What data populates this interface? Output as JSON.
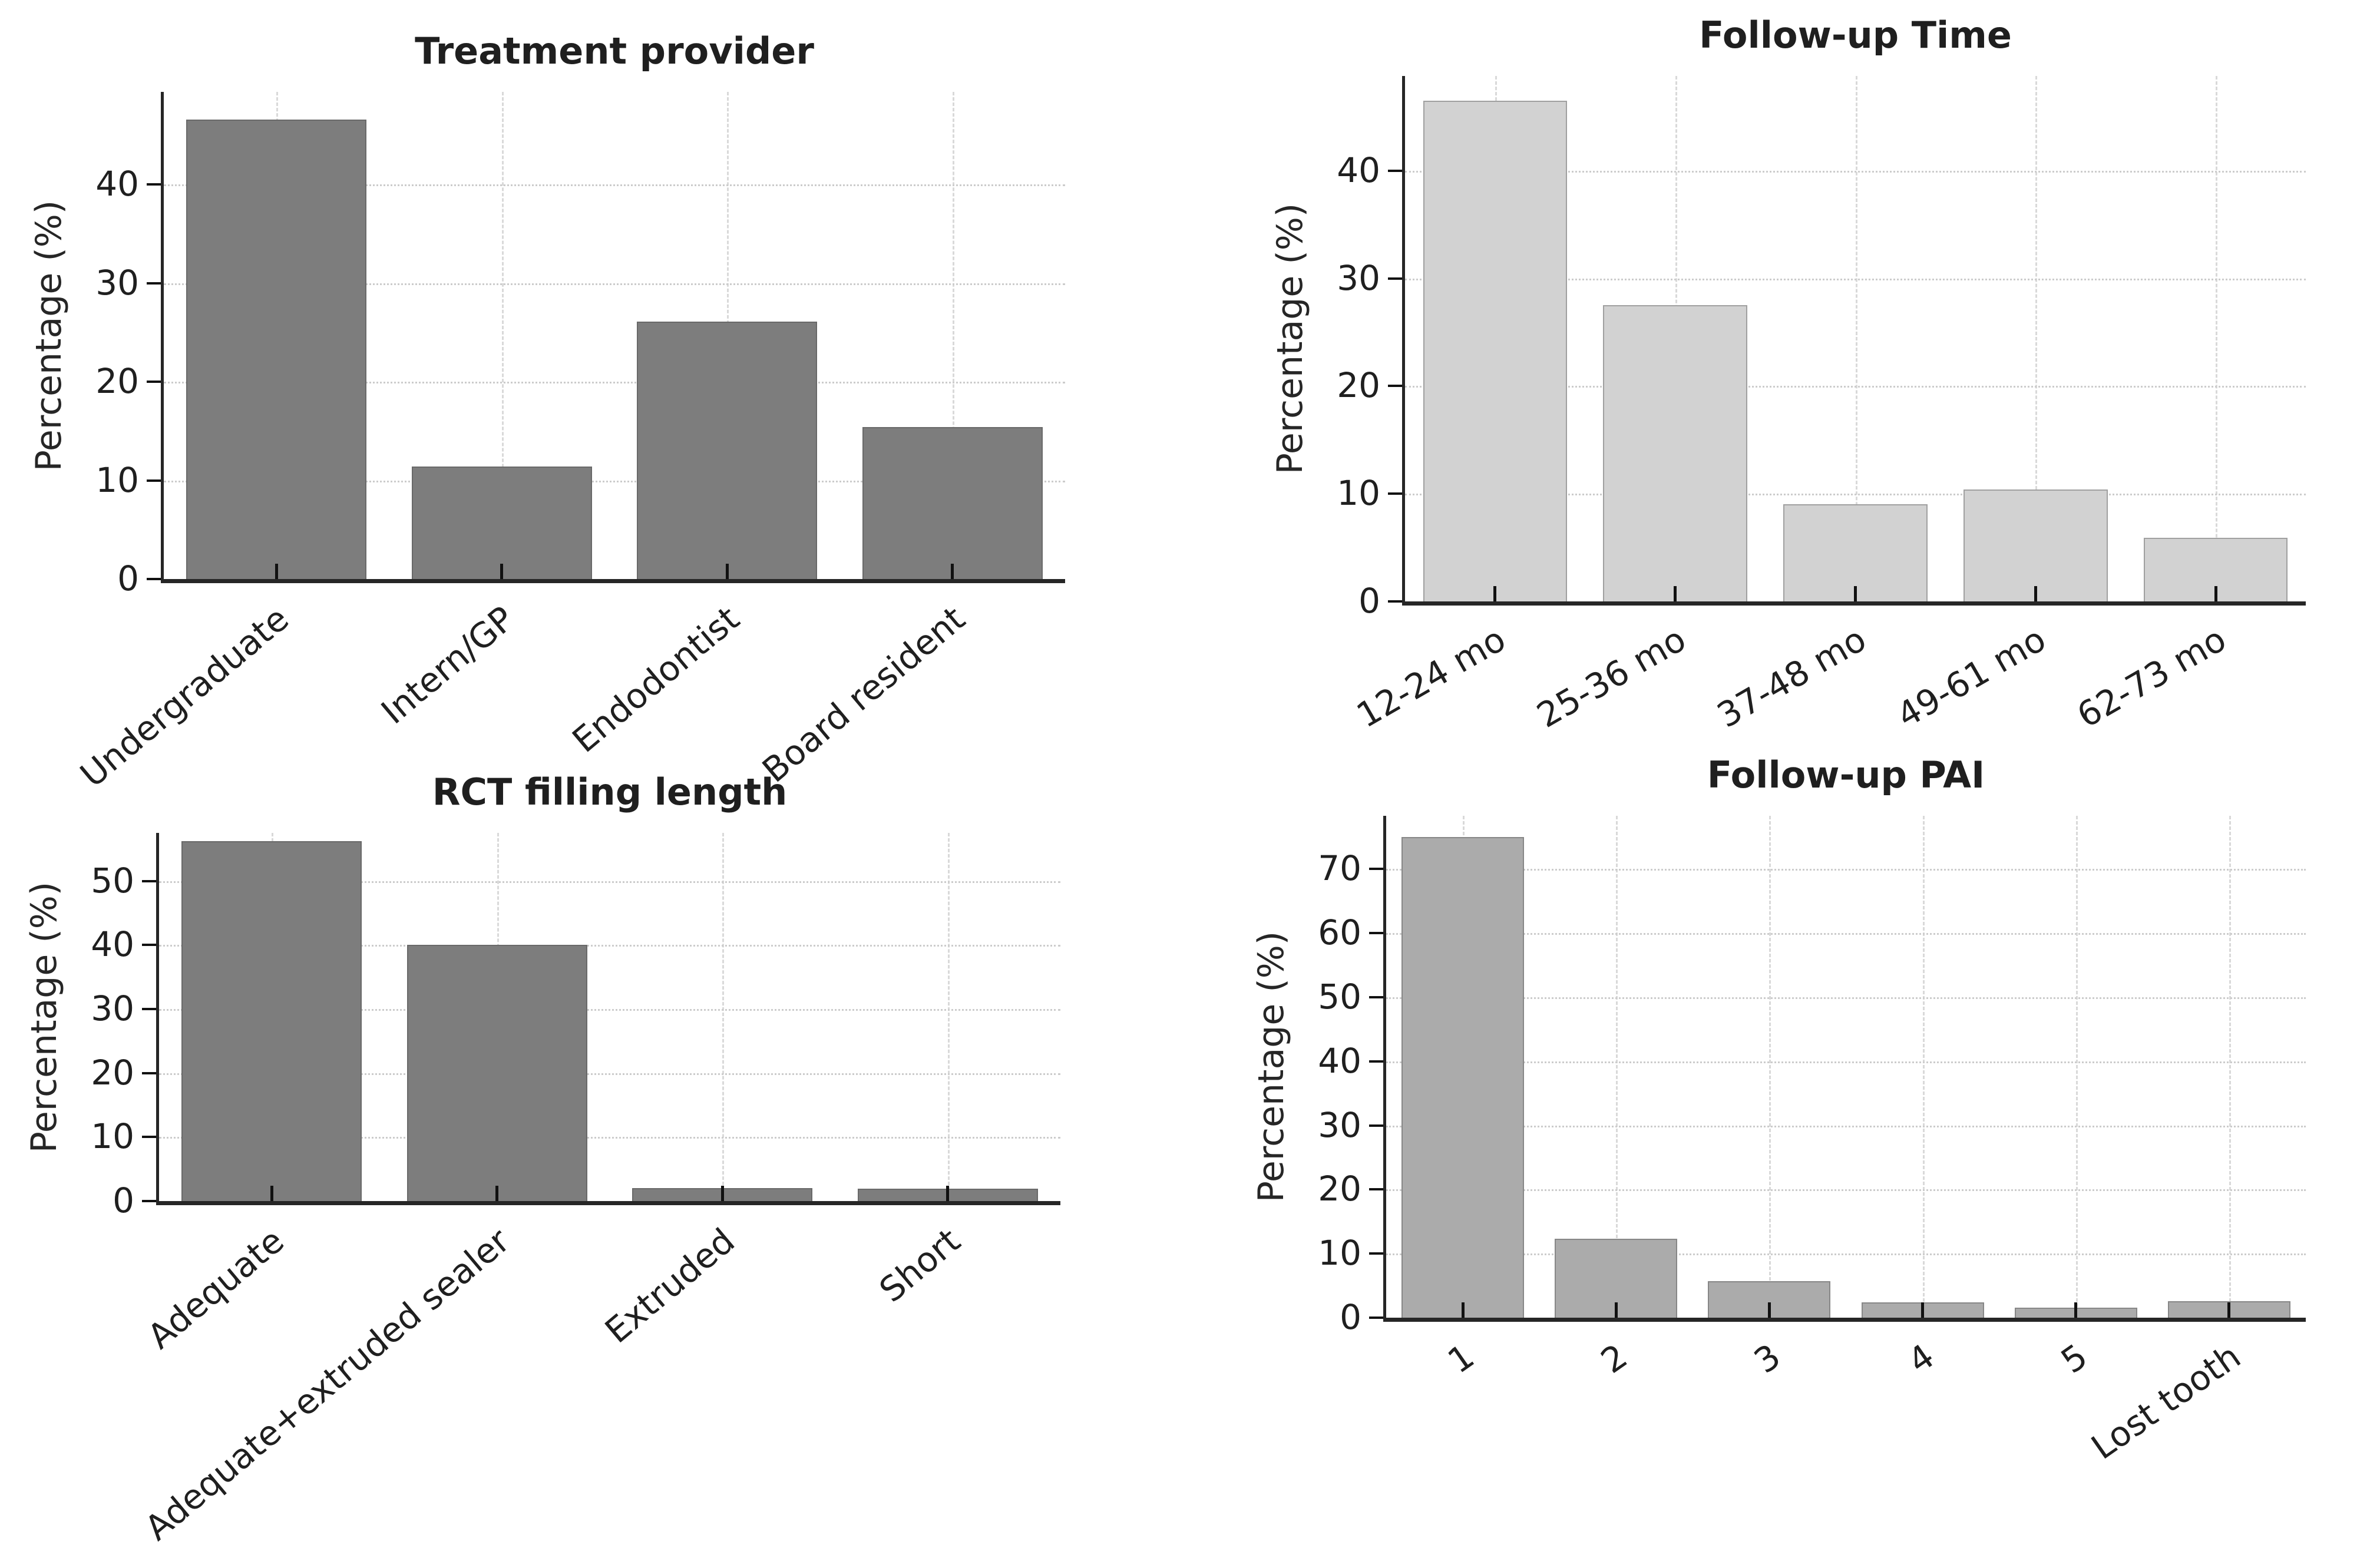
{
  "figure": {
    "background": "#ffffff",
    "text_color": "#1f1f1f",
    "spine_color": "#262626",
    "tick_color": "#111111",
    "hgrid_color": "#cccccc",
    "vgrid_color": "#d9d9d9",
    "shared_ylabel": "Percentage (%)"
  },
  "chart_data": [
    {
      "type": "bar",
      "title": "Treatment provider",
      "xlabel": "",
      "ylabel": "Percentage (%)",
      "categories": [
        "Undergraduate",
        "Intern/GP",
        "Endodontist",
        "Board resident"
      ],
      "values": [
        46.6,
        11.4,
        26.1,
        15.4
      ],
      "yticks": [
        0,
        10,
        20,
        30,
        40
      ],
      "ylim": [
        0,
        49.4
      ],
      "bar_color": "#7d7d7d",
      "grid": true,
      "legend": null,
      "xtick_rotation_deg": 40
    },
    {
      "type": "bar",
      "title": "Follow-up Time",
      "xlabel": "",
      "ylabel": "Percentage (%)",
      "categories": [
        "12-24 mo",
        "25-36 mo",
        "37-48 mo",
        "49-61 mo",
        "62-73 mo"
      ],
      "values": [
        46.5,
        27.5,
        9.0,
        10.4,
        5.9
      ],
      "yticks": [
        0,
        10,
        20,
        30,
        40
      ],
      "ylim": [
        0,
        48.8
      ],
      "bar_color": "#d2d2d2",
      "grid": true,
      "legend": null,
      "xtick_rotation_deg": 30
    },
    {
      "type": "bar",
      "title": "RCT filling length",
      "xlabel": "",
      "ylabel": "Percentage (%)",
      "categories": [
        "Adequate",
        "Adequate+extruded sealer",
        "Extruded",
        "Short"
      ],
      "values": [
        56.2,
        40.0,
        2.0,
        1.9
      ],
      "yticks": [
        0,
        10,
        20,
        30,
        40,
        50
      ],
      "ylim": [
        0,
        57.5
      ],
      "bar_color": "#7d7d7d",
      "grid": true,
      "legend": null,
      "xtick_rotation_deg": 40
    },
    {
      "type": "bar",
      "title": "Follow-up PAI",
      "xlabel": "",
      "ylabel": "Percentage (%)",
      "categories": [
        "1",
        "2",
        "3",
        "4",
        "5",
        "Lost tooth"
      ],
      "values": [
        75.0,
        12.3,
        5.7,
        2.4,
        1.6,
        2.6
      ],
      "yticks": [
        0,
        10,
        20,
        30,
        40,
        50,
        60,
        70
      ],
      "ylim": [
        0,
        78.3
      ],
      "bar_color": "#ababab",
      "grid": true,
      "legend": null,
      "xtick_rotation_deg": 35
    }
  ]
}
